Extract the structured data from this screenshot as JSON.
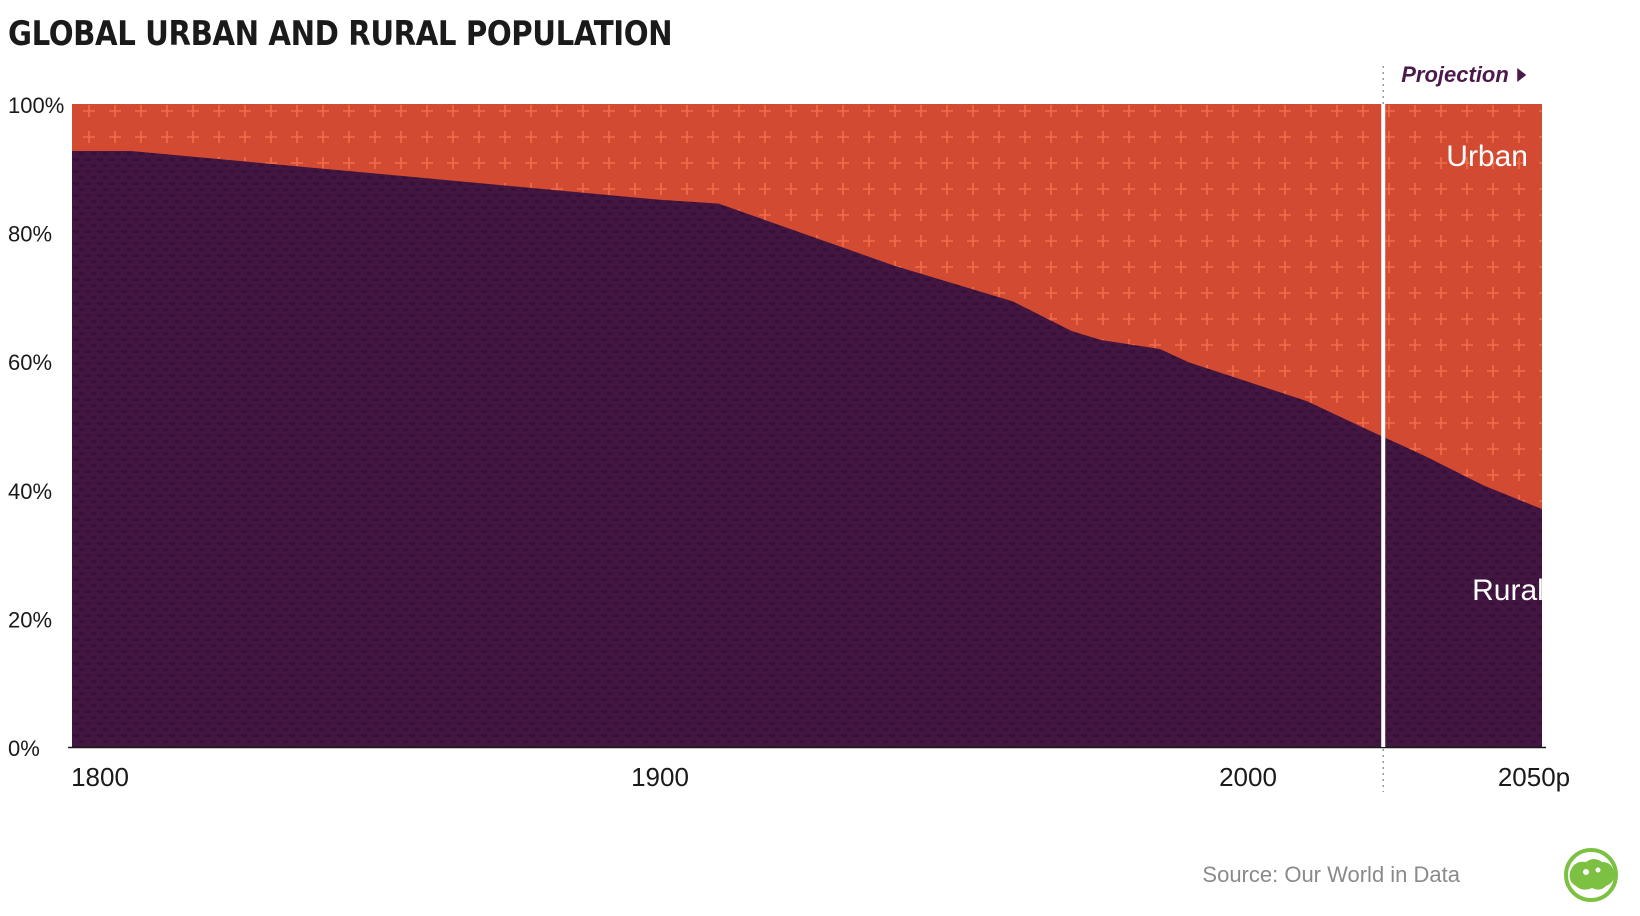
{
  "header": {
    "title": "GLOBAL URBAN AND RURAL POPULATION"
  },
  "chart_data": {
    "type": "area",
    "title": "GLOBAL URBAN AND RURAL POPULATION",
    "xlabel": "",
    "ylabel": "",
    "xlim": [
      1800,
      2050
    ],
    "ylim": [
      0,
      100
    ],
    "x_tick_labels": [
      {
        "x": 1800,
        "label": "1800"
      },
      {
        "x": 1900,
        "label": "1900"
      },
      {
        "x": 2000,
        "label": "2000"
      },
      {
        "x": 2050,
        "label": "2050p"
      }
    ],
    "y_tick_labels": [
      {
        "y": 0,
        "label": "0%"
      },
      {
        "y": 20,
        "label": "20%"
      },
      {
        "y": 40,
        "label": "40%"
      },
      {
        "y": 60,
        "label": "60%"
      },
      {
        "y": 80,
        "label": "80%"
      },
      {
        "y": 100,
        "label": "100%"
      }
    ],
    "x": [
      1800,
      1810,
      1900,
      1910,
      1940,
      1960,
      1970,
      1975,
      1985,
      1990,
      2000,
      2010,
      2020,
      2030,
      2040,
      2050
    ],
    "series": [
      {
        "name": "Rural",
        "color": "#431641",
        "values": [
          92.7,
          92.7,
          85.1,
          84.5,
          74.8,
          69.3,
          64.7,
          63.3,
          61.9,
          59.8,
          56.8,
          53.8,
          49.5,
          45.3,
          40.7,
          37.0
        ]
      },
      {
        "name": "Urban",
        "color": "#d14a31",
        "values": [
          7.3,
          7.3,
          14.9,
          15.5,
          25.2,
          30.7,
          35.3,
          36.7,
          38.1,
          40.2,
          43.2,
          46.2,
          50.5,
          54.7,
          59.3,
          63.0
        ]
      }
    ],
    "series_labels": {
      "urban": "Urban",
      "rural": "Rural"
    },
    "projection": {
      "start_year": 2023,
      "label": "Projection"
    },
    "source": "Source: Our World in Data"
  },
  "icons": {
    "logo": "world-map-logo-icon",
    "projection_arrow": "play-arrow-icon"
  },
  "colors": {
    "rural": "#431641",
    "urban": "#d14a31",
    "projection_label": "#4b1a4a",
    "source_text": "#8a8a8a",
    "logo": "#7cc142"
  }
}
